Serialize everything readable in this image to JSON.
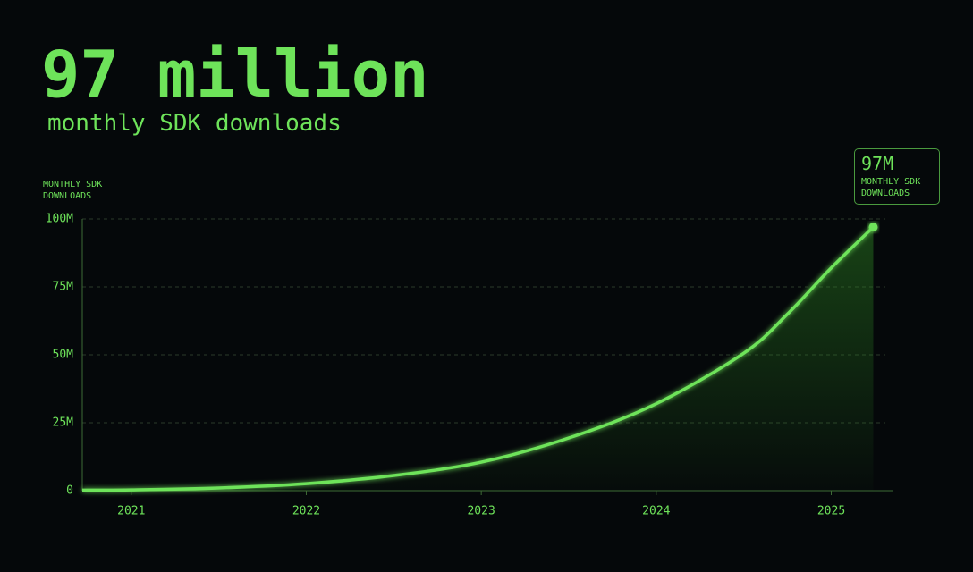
{
  "chart_data": {
    "type": "line",
    "title": "97 million",
    "subtitle": "monthly SDK downloads",
    "y_label": "MONTHLY SDK DOWNLOADS",
    "annotation": "MONTHLY SDK DOWNLOADS",
    "color": "#6ee35a",
    "x": [
      2020.72,
      2021,
      2021.5,
      2022,
      2022.5,
      2023,
      2023.5,
      2024,
      2024.5,
      2024.75,
      2025,
      2025.24
    ],
    "values": [
      0.2,
      0.3,
      1,
      2.6,
      5.6,
      10.5,
      19.4,
      32,
      50.6,
      65,
      82,
      97
    ],
    "value_labels": [
      null,
      null,
      null,
      null,
      null,
      null,
      null,
      null,
      null,
      null,
      null,
      "97M"
    ],
    "xlim": [
      2020.72,
      2025.35
    ],
    "xticks": [
      2021,
      2022,
      2023,
      2024,
      2025
    ],
    "ylim": [
      0,
      100
    ],
    "yticks": [
      0,
      {
        "value": 25,
        "label": "25M"
      },
      {
        "value": 50,
        "label": "50M"
      },
      {
        "value": 75,
        "label": "75M"
      },
      {
        "value": 100,
        "label": "100M"
      }
    ],
    "grid": true
  }
}
